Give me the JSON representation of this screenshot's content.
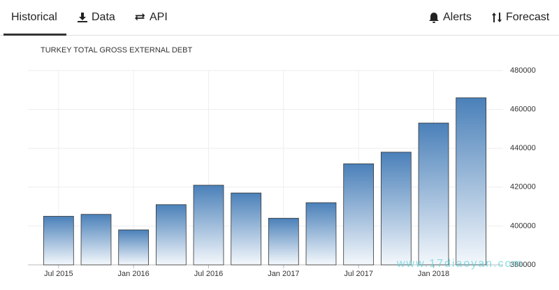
{
  "tabs": [
    "Historical",
    "Data",
    "API",
    "Alerts",
    "Forecast"
  ],
  "watermark": "www.17diaoyan.com",
  "chart_data": {
    "type": "bar",
    "title": "TURKEY TOTAL GROSS EXTERNAL DEBT",
    "categories": [
      "Jul 2015",
      null,
      "Jan 2016",
      null,
      "Jul 2016",
      null,
      "Jan 2017",
      null,
      "Jul 2017",
      null,
      "Jan 2018",
      null
    ],
    "values": [
      405000,
      406000,
      398000,
      411000,
      421000,
      417000,
      404000,
      412000,
      432000,
      438000,
      453000,
      466000
    ],
    "color": "#4a80b9",
    "ylim": [
      380000,
      480000
    ],
    "yticks": [
      380000,
      400000,
      420000,
      440000,
      460000,
      480000
    ],
    "grid": true
  }
}
